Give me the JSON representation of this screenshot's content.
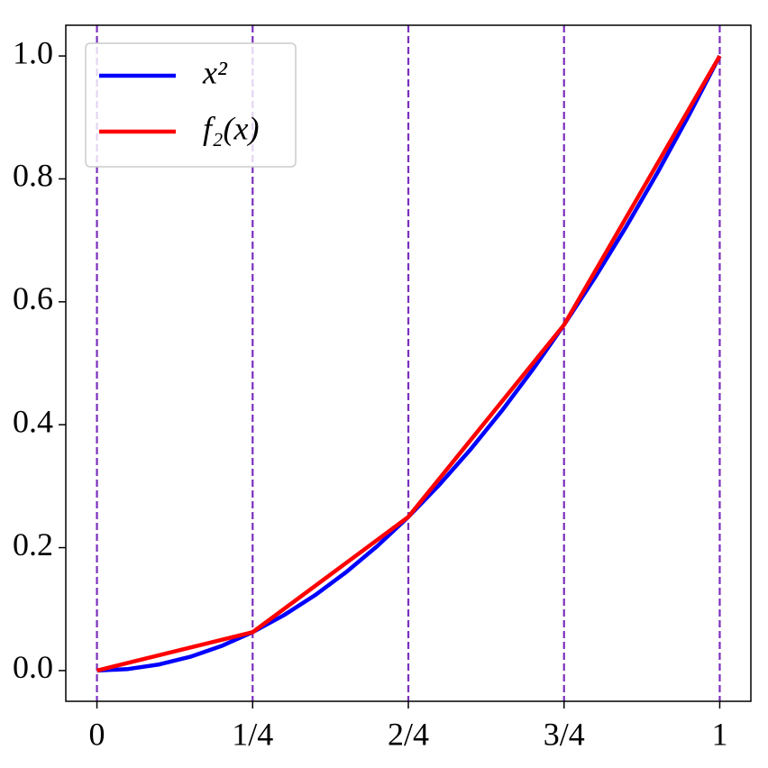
{
  "chart_data": {
    "type": "line",
    "series": [
      {
        "name": "x²",
        "color": "#0000ff",
        "x": [
          0,
          0.05,
          0.1,
          0.15,
          0.2,
          0.25,
          0.3,
          0.35,
          0.4,
          0.45,
          0.5,
          0.55,
          0.6,
          0.65,
          0.7,
          0.75,
          0.8,
          0.85,
          0.9,
          0.95,
          1
        ],
        "values": [
          0,
          0.0025,
          0.01,
          0.0225,
          0.04,
          0.0625,
          0.09,
          0.1225,
          0.16,
          0.2025,
          0.25,
          0.3025,
          0.36,
          0.4225,
          0.49,
          0.5625,
          0.64,
          0.7225,
          0.81,
          0.9025,
          1
        ]
      },
      {
        "name": "f₂(x)",
        "color": "#ff0000",
        "x": [
          0,
          0.25,
          0.5,
          0.75,
          1
        ],
        "values": [
          0,
          0.0625,
          0.25,
          0.5625,
          1
        ]
      }
    ],
    "xlim": [
      -0.05,
      1.05
    ],
    "ylim": [
      -0.05,
      1.05
    ],
    "xticks": [
      0,
      {
        "value": 0.25,
        "label": "1/4"
      },
      {
        "value": 0.5,
        "label": "2/4"
      },
      {
        "value": 0.75,
        "label": "3/4"
      },
      1
    ],
    "yticks": [
      {
        "value": 0,
        "label": "0.0"
      },
      0.2,
      0.4,
      0.6,
      0.8,
      {
        "value": 1,
        "label": "1.0"
      }
    ],
    "grid": true,
    "grid_color": "#7b2fbe",
    "legend": "upper left"
  }
}
